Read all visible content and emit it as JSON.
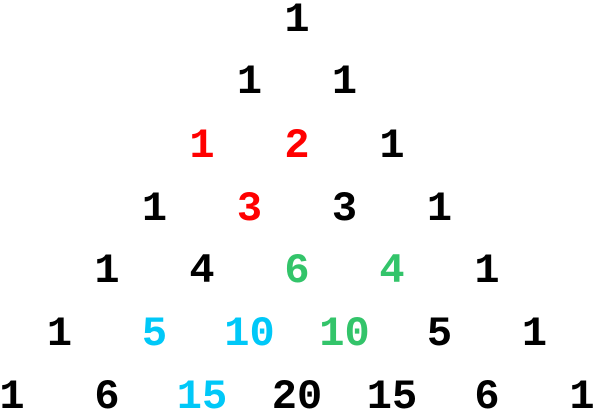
{
  "colors": {
    "default": "#000000",
    "red": "#ff0000",
    "green": "#33c46a",
    "cyan": "#00c8f8"
  },
  "rows": [
    [
      {
        "v": "1",
        "c": "default"
      }
    ],
    [
      {
        "v": "1",
        "c": "default"
      },
      {
        "v": "1",
        "c": "default"
      }
    ],
    [
      {
        "v": "1",
        "c": "red"
      },
      {
        "v": "2",
        "c": "red"
      },
      {
        "v": "1",
        "c": "default"
      }
    ],
    [
      {
        "v": "1",
        "c": "default"
      },
      {
        "v": "3",
        "c": "red"
      },
      {
        "v": "3",
        "c": "default"
      },
      {
        "v": "1",
        "c": "default"
      }
    ],
    [
      {
        "v": "1",
        "c": "default"
      },
      {
        "v": "4",
        "c": "default"
      },
      {
        "v": "6",
        "c": "green"
      },
      {
        "v": "4",
        "c": "green"
      },
      {
        "v": "1",
        "c": "default"
      }
    ],
    [
      {
        "v": "1",
        "c": "default"
      },
      {
        "v": "5",
        "c": "cyan"
      },
      {
        "v": "10",
        "c": "cyan"
      },
      {
        "v": "10",
        "c": "green"
      },
      {
        "v": "5",
        "c": "default"
      },
      {
        "v": "1",
        "c": "default"
      }
    ],
    [
      {
        "v": "1",
        "c": "default"
      },
      {
        "v": "6",
        "c": "default"
      },
      {
        "v": "15",
        "c": "cyan"
      },
      {
        "v": "20",
        "c": "default"
      },
      {
        "v": "15",
        "c": "default"
      },
      {
        "v": "6",
        "c": "default"
      },
      {
        "v": "1",
        "c": "default"
      }
    ]
  ]
}
